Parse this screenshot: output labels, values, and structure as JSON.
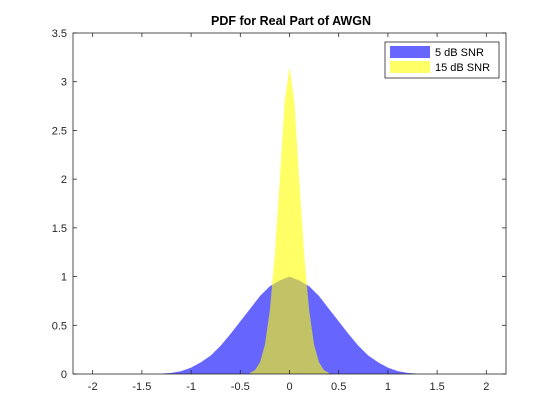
{
  "chart_data": {
    "type": "area",
    "title": "PDF for Real Part of AWGN",
    "xlabel": "",
    "ylabel": "",
    "xlim": [
      -2.2,
      2.2
    ],
    "ylim": [
      0,
      3.5
    ],
    "x_ticks": [
      "-2",
      "-1.5",
      "-1",
      "-0.5",
      "0",
      "0.5",
      "1",
      "1.5",
      "2"
    ],
    "x_tick_values": [
      -2,
      -1.5,
      -1,
      -0.5,
      0,
      0.5,
      1,
      1.5,
      2
    ],
    "y_ticks": [
      "0",
      "0.5",
      "1",
      "1.5",
      "2",
      "2.5",
      "3",
      "3.5"
    ],
    "y_tick_values": [
      0,
      0.5,
      1,
      1.5,
      2,
      2.5,
      3,
      3.5
    ],
    "grid": false,
    "legend_position": "top-right",
    "series": [
      {
        "name": "5 dB SNR",
        "color": "#0000ff",
        "opacity": 0.6,
        "x": [
          -1.3,
          -1.2,
          -1.1,
          -1.0,
          -0.9,
          -0.8,
          -0.7,
          -0.6,
          -0.5,
          -0.4,
          -0.3,
          -0.2,
          -0.1,
          0.0,
          0.1,
          0.2,
          0.3,
          0.4,
          0.5,
          0.6,
          0.7,
          0.8,
          0.9,
          1.0,
          1.1,
          1.2,
          1.3
        ],
        "values": [
          0.004,
          0.011,
          0.03,
          0.065,
          0.12,
          0.19,
          0.29,
          0.41,
          0.54,
          0.67,
          0.8,
          0.9,
          0.96,
          1.0,
          0.96,
          0.9,
          0.8,
          0.67,
          0.54,
          0.41,
          0.29,
          0.19,
          0.12,
          0.065,
          0.03,
          0.011,
          0.004
        ]
      },
      {
        "name": "15 dB SNR",
        "color": "#ffff00",
        "opacity": 0.6,
        "x": [
          -0.4,
          -0.35,
          -0.3,
          -0.25,
          -0.2,
          -0.15,
          -0.1,
          -0.05,
          0.0,
          0.05,
          0.1,
          0.15,
          0.2,
          0.25,
          0.3,
          0.35,
          0.4
        ],
        "values": [
          0.011,
          0.04,
          0.12,
          0.3,
          0.65,
          1.22,
          1.97,
          2.79,
          3.15,
          2.79,
          1.97,
          1.22,
          0.65,
          0.3,
          0.12,
          0.04,
          0.011
        ]
      }
    ]
  }
}
